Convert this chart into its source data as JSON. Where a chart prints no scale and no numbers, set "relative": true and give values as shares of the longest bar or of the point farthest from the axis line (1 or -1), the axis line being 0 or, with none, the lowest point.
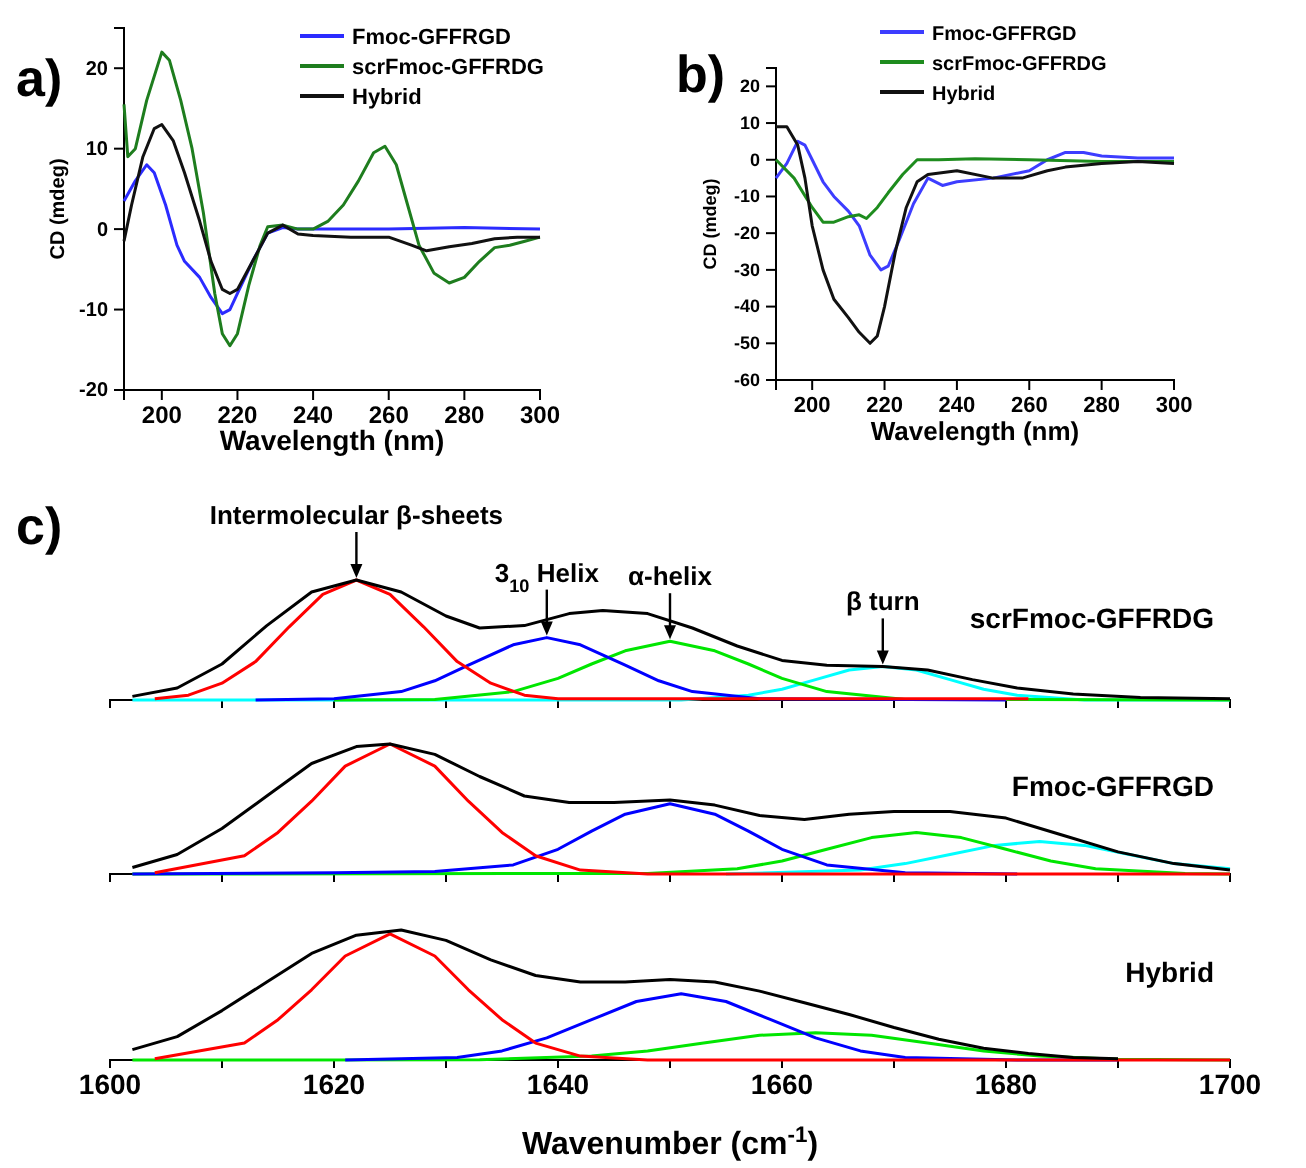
{
  "chart_data": [
    {
      "type": "line",
      "annotations": [
        "a)"
      ],
      "xlabel": "Wavelength (nm)",
      "ylabel": "CD (mdeg)",
      "xlim": [
        190,
        300
      ],
      "xticks": [
        200,
        220,
        240,
        260,
        280,
        300
      ],
      "ylim": [
        -20,
        25
      ],
      "yticks": [
        -20,
        -10,
        0,
        10,
        20
      ],
      "legend": "top right",
      "marker": "none",
      "series": [
        {
          "name": "Fmoc-GFFRGD",
          "color": "#2b2bff",
          "x": [
            190,
            193,
            196,
            198,
            201,
            204,
            206,
            210,
            213,
            216,
            218,
            220,
            224,
            228,
            232,
            236,
            240,
            260,
            280,
            300
          ],
          "values": [
            3.5,
            6,
            8,
            7,
            3,
            -2,
            -4,
            -6,
            -8.5,
            -10.5,
            -10,
            -8,
            -4,
            -0.5,
            0.2,
            0,
            0,
            0,
            0.2,
            0
          ]
        },
        {
          "name": "scrFmoc-GFFRDG",
          "color": "#1e7d1e",
          "x": [
            190,
            191,
            193,
            196,
            200,
            202,
            205,
            208,
            211,
            214,
            216,
            218,
            220,
            223,
            226,
            228,
            232,
            236,
            240,
            244,
            248,
            252,
            256,
            259,
            262,
            265,
            268,
            272,
            276,
            280,
            284,
            288,
            292,
            296,
            300
          ],
          "values": [
            15.5,
            9,
            10,
            16,
            22,
            21,
            16,
            10,
            2,
            -8,
            -13,
            -14.5,
            -13,
            -7,
            -2,
            0.3,
            0.5,
            0,
            0,
            1,
            3,
            6,
            9.5,
            10.3,
            8,
            3,
            -2,
            -5.5,
            -6.7,
            -6,
            -4,
            -2.3,
            -2,
            -1.5,
            -1
          ]
        },
        {
          "name": "Hybrid",
          "color": "#111111",
          "x": [
            190,
            192,
            195,
            198,
            200,
            203,
            206,
            210,
            213,
            216,
            218,
            220,
            224,
            228,
            232,
            236,
            240,
            250,
            260,
            266,
            270,
            276,
            282,
            288,
            294,
            300
          ],
          "values": [
            -1.5,
            3,
            9,
            12.5,
            13,
            11,
            7,
            1,
            -4,
            -7.5,
            -8,
            -7.5,
            -4,
            -0.5,
            0.5,
            -0.6,
            -0.8,
            -1,
            -1,
            -2,
            -2.7,
            -2.2,
            -1.8,
            -1.2,
            -1,
            -1
          ]
        }
      ]
    },
    {
      "type": "line",
      "annotations": [
        "b)"
      ],
      "xlabel": "Wavelength (nm)",
      "ylabel": "CD (mdeg)",
      "xlim": [
        190,
        300
      ],
      "xticks": [
        200,
        220,
        240,
        260,
        280,
        300
      ],
      "ylim": [
        -60,
        25
      ],
      "yticks": [
        -60,
        -50,
        -40,
        -30,
        -20,
        -10,
        0,
        10,
        20
      ],
      "legend": "top right",
      "marker": "none",
      "series": [
        {
          "name": "Fmoc-GFFRGD",
          "color": "#3d3dff",
          "x": [
            190,
            193,
            196,
            198,
            200,
            203,
            206,
            210,
            213,
            216,
            219,
            221,
            224,
            228,
            232,
            236,
            240,
            250,
            260,
            265,
            270,
            275,
            280,
            290,
            300
          ],
          "values": [
            -5,
            -1,
            5,
            4,
            0,
            -6,
            -10,
            -14,
            -18,
            -26,
            -30,
            -29,
            -22,
            -12,
            -5,
            -7,
            -6,
            -5,
            -3,
            0,
            2,
            2,
            1,
            0.5,
            0.5
          ]
        },
        {
          "name": "scrFmoc-GFFRDG",
          "color": "#1e8c1e",
          "x": [
            190,
            195,
            200,
            203,
            206,
            210,
            213,
            215,
            218,
            221,
            225,
            229,
            235,
            245,
            260,
            280,
            300
          ],
          "values": [
            0,
            -5,
            -13,
            -17,
            -17,
            -15.5,
            -15,
            -16,
            -13,
            -9,
            -4,
            0,
            0,
            0.3,
            0,
            -0.5,
            -0.5
          ]
        },
        {
          "name": "Hybrid",
          "color": "#111111",
          "x": [
            190,
            193,
            196,
            198,
            200,
            203,
            206,
            210,
            213,
            216,
            218,
            220,
            223,
            226,
            229,
            232,
            240,
            250,
            258,
            265,
            270,
            280,
            290,
            300
          ],
          "values": [
            9,
            9,
            4,
            -5,
            -18,
            -30,
            -38,
            -43,
            -47,
            -50,
            -48,
            -40,
            -25,
            -13,
            -6,
            -4,
            -3,
            -5,
            -5,
            -3,
            -2,
            -1,
            -0.5,
            -1
          ]
        }
      ]
    },
    {
      "type": "line",
      "relative": true,
      "title": "scrFmoc-GFFRDG",
      "tick_labels": false,
      "xlim": [
        1600,
        1700
      ],
      "xticks": [
        1600,
        {
          "value": 1610,
          "label": null
        },
        1620,
        {
          "value": 1630,
          "label": null
        },
        1640,
        {
          "value": 1650,
          "label": null
        },
        1660,
        {
          "value": 1670,
          "label": null
        },
        1680,
        {
          "value": 1690,
          "label": null
        },
        1700
      ],
      "marker": "none",
      "annotations": [
        "c)",
        {
          "text": "Intermolecular β-sheets",
          "x": 1622,
          "y": 1.0
        },
        {
          "text": "3$_{10}$ Helix",
          "x": 1639,
          "y": 0.52
        },
        {
          "text": "α-helix",
          "x": 1650,
          "y": 0.49
        },
        {
          "text": "β turn",
          "x": 1669,
          "y": 0.28
        }
      ],
      "series": [
        {
          "color": "#00ffff",
          "x": [
            1602,
            1651,
            1657,
            1660,
            1663,
            1666,
            1669,
            1672,
            1675,
            1678,
            1681,
            1687,
            1700
          ],
          "values": [
            0,
            0,
            0.04,
            0.09,
            0.17,
            0.25,
            0.28,
            0.25,
            0.17,
            0.09,
            0.04,
            0,
            0
          ]
        },
        {
          "color": "#00e600",
          "x": [
            1620,
            1629,
            1636,
            1640,
            1643,
            1646,
            1650,
            1654,
            1657,
            1660,
            1664,
            1671,
            1700
          ],
          "values": [
            0,
            0.005,
            0.07,
            0.18,
            0.3,
            0.41,
            0.49,
            0.41,
            0.3,
            0.18,
            0.07,
            0.005,
            0
          ]
        },
        {
          "color": "#0000ff",
          "x": [
            1613,
            1620,
            1626,
            1629,
            1632,
            1636,
            1639,
            1642,
            1646,
            1649,
            1652,
            1658,
            1680
          ],
          "values": [
            0,
            0.01,
            0.07,
            0.16,
            0.29,
            0.46,
            0.52,
            0.46,
            0.29,
            0.16,
            0.07,
            0.01,
            0
          ]
        },
        {
          "color": "#ff0000",
          "x": [
            1604,
            1607,
            1610,
            1613,
            1616,
            1619,
            1622,
            1625,
            1628,
            1631,
            1634,
            1637,
            1640,
            1682
          ],
          "values": [
            0.01,
            0.04,
            0.14,
            0.32,
            0.61,
            0.88,
            1.0,
            0.88,
            0.61,
            0.32,
            0.14,
            0.04,
            0.01,
            0.01
          ]
        },
        {
          "color": "#000000",
          "x": [
            1602,
            1606,
            1610,
            1614,
            1618,
            1622,
            1626,
            1630,
            1633,
            1637,
            1641,
            1644,
            1648,
            1652,
            1656,
            1660,
            1664,
            1669,
            1673,
            1677,
            1681,
            1686,
            1692,
            1700
          ],
          "values": [
            0.03,
            0.1,
            0.3,
            0.62,
            0.9,
            1.0,
            0.9,
            0.7,
            0.6,
            0.62,
            0.72,
            0.745,
            0.72,
            0.6,
            0.45,
            0.33,
            0.29,
            0.28,
            0.25,
            0.17,
            0.1,
            0.05,
            0.02,
            0.01
          ]
        }
      ]
    },
    {
      "type": "line",
      "relative": true,
      "title": "Fmoc-GFFRGD",
      "tick_labels": false,
      "xlim": [
        1600,
        1700
      ],
      "xticks": [
        1600,
        {
          "value": 1610,
          "label": null
        },
        1620,
        {
          "value": 1630,
          "label": null
        },
        1640,
        {
          "value": 1650,
          "label": null
        },
        1660,
        {
          "value": 1670,
          "label": null
        },
        1680,
        {
          "value": 1690,
          "label": null
        },
        1700
      ],
      "marker": "none",
      "series": [
        {
          "color": "#00ffff",
          "x": [
            1655,
            1667,
            1671,
            1675,
            1679,
            1683,
            1687,
            1691,
            1695,
            1700
          ],
          "values": [
            0,
            0.03,
            0.08,
            0.15,
            0.22,
            0.25,
            0.22,
            0.15,
            0.08,
            0.04
          ]
        },
        {
          "color": "#00e600",
          "x": [
            1602,
            1648,
            1656,
            1660,
            1664,
            1668,
            1672,
            1676,
            1680,
            1684,
            1688,
            1696,
            1700
          ],
          "values": [
            0,
            0.004,
            0.04,
            0.1,
            0.19,
            0.28,
            0.32,
            0.28,
            0.19,
            0.1,
            0.04,
            0.004,
            0
          ]
        },
        {
          "color": "#0000ff",
          "x": [
            1602,
            1620,
            1629,
            1636,
            1640,
            1643,
            1646,
            1650,
            1654,
            1657,
            1660,
            1664,
            1671,
            1681
          ],
          "values": [
            0,
            0.01,
            0.02,
            0.07,
            0.19,
            0.33,
            0.46,
            0.54,
            0.46,
            0.33,
            0.19,
            0.07,
            0.01,
            0
          ]
        },
        {
          "color": "#ff0000",
          "x": [
            1604,
            1612,
            1615,
            1618,
            1621,
            1625,
            1629,
            1632,
            1635,
            1638,
            1642,
            1648,
            1700
          ],
          "values": [
            0.01,
            0.14,
            0.32,
            0.56,
            0.83,
            1.0,
            0.83,
            0.56,
            0.32,
            0.14,
            0.03,
            0,
            0
          ]
        },
        {
          "color": "#000000",
          "x": [
            1602,
            1606,
            1610,
            1614,
            1618,
            1622,
            1625,
            1629,
            1633,
            1637,
            1641,
            1645,
            1650,
            1654,
            1658,
            1662,
            1666,
            1670,
            1675,
            1680,
            1685,
            1690,
            1695,
            1700
          ],
          "values": [
            0.05,
            0.15,
            0.35,
            0.6,
            0.85,
            0.98,
            1.0,
            0.92,
            0.75,
            0.6,
            0.55,
            0.55,
            0.57,
            0.53,
            0.45,
            0.42,
            0.46,
            0.48,
            0.48,
            0.43,
            0.3,
            0.17,
            0.08,
            0.03
          ]
        }
      ]
    },
    {
      "type": "line",
      "relative": true,
      "title": "Hybrid",
      "tick_labels": "x",
      "xlabel": "Wavenumber (cm$^{-1}$)",
      "xlim": [
        1600,
        1700
      ],
      "xticks": [
        1600,
        {
          "value": 1610,
          "label": null
        },
        1620,
        {
          "value": 1630,
          "label": null
        },
        1640,
        {
          "value": 1650,
          "label": null
        },
        1660,
        {
          "value": 1670,
          "label": null
        },
        1680,
        {
          "value": 1690,
          "label": null
        },
        1700
      ],
      "marker": "none",
      "series": [
        {
          "color": "#00e600",
          "x": [
            1602,
            1633,
            1643,
            1648,
            1653,
            1658,
            1663,
            1668,
            1673,
            1678,
            1683,
            1690,
            1700
          ],
          "values": [
            0,
            0.002,
            0.03,
            0.07,
            0.13,
            0.19,
            0.21,
            0.19,
            0.13,
            0.07,
            0.03,
            0.005,
            0
          ]
        },
        {
          "color": "#0000ff",
          "x": [
            1621,
            1631,
            1635,
            1639,
            1643,
            1647,
            1651,
            1655,
            1659,
            1663,
            1667,
            1671,
            1681,
            1690
          ],
          "values": [
            0,
            0.02,
            0.07,
            0.17,
            0.31,
            0.45,
            0.51,
            0.45,
            0.31,
            0.17,
            0.07,
            0.02,
            0,
            0
          ]
        },
        {
          "color": "#ff0000",
          "x": [
            1604,
            1612,
            1615,
            1618,
            1621,
            1625,
            1629,
            1632,
            1635,
            1638,
            1642,
            1648,
            1700
          ],
          "values": [
            0.01,
            0.13,
            0.31,
            0.54,
            0.8,
            0.97,
            0.8,
            0.54,
            0.31,
            0.13,
            0.03,
            0,
            0
          ]
        },
        {
          "color": "#000000",
          "x": [
            1602,
            1606,
            1610,
            1614,
            1618,
            1622,
            1626,
            1630,
            1634,
            1638,
            1642,
            1646,
            1650,
            1654,
            1658,
            1662,
            1666,
            1670,
            1674,
            1678,
            1682,
            1686,
            1690
          ],
          "values": [
            0.08,
            0.18,
            0.38,
            0.6,
            0.82,
            0.96,
            1.0,
            0.92,
            0.77,
            0.65,
            0.6,
            0.6,
            0.62,
            0.6,
            0.53,
            0.44,
            0.35,
            0.25,
            0.16,
            0.09,
            0.05,
            0.02,
            0.01
          ]
        }
      ]
    }
  ]
}
